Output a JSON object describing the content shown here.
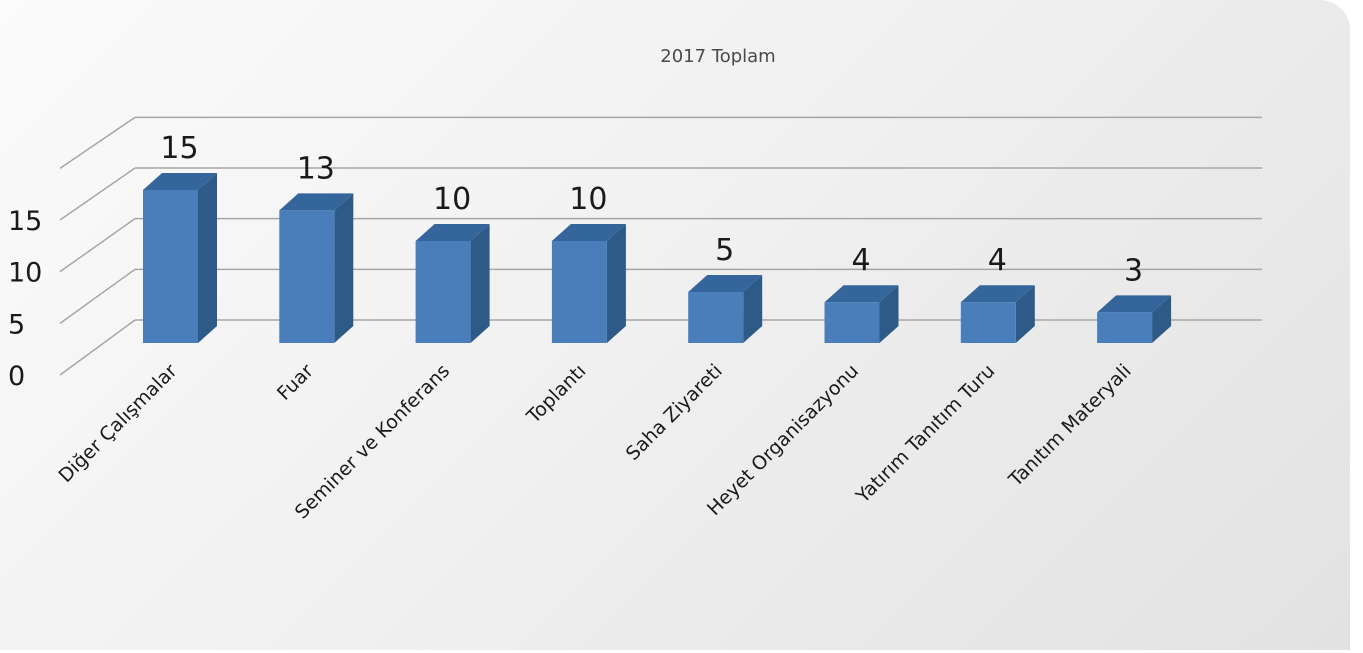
{
  "chart_data": {
    "type": "bar",
    "title": "2017 Toplam",
    "categories": [
      "Diğer Çalışmalar",
      "Fuar",
      "Seminer ve Konferans",
      "Toplantı",
      "Saha Ziyareti",
      "Heyet Organisazyonu",
      "Yatırım Tanıtım Turu",
      "Tanıtım Materyali"
    ],
    "values": [
      15,
      13,
      10,
      10,
      5,
      4,
      4,
      3
    ],
    "ylim": [
      0,
      15
    ],
    "yticks": [
      "0",
      "5",
      "10",
      "15"
    ],
    "grid": true,
    "legend": "none",
    "colors": {
      "bar_front": "#4a7ebb",
      "bar_side": "#2e5a87",
      "bar_top": "#35669b",
      "grid": "#a6a6a6"
    }
  }
}
